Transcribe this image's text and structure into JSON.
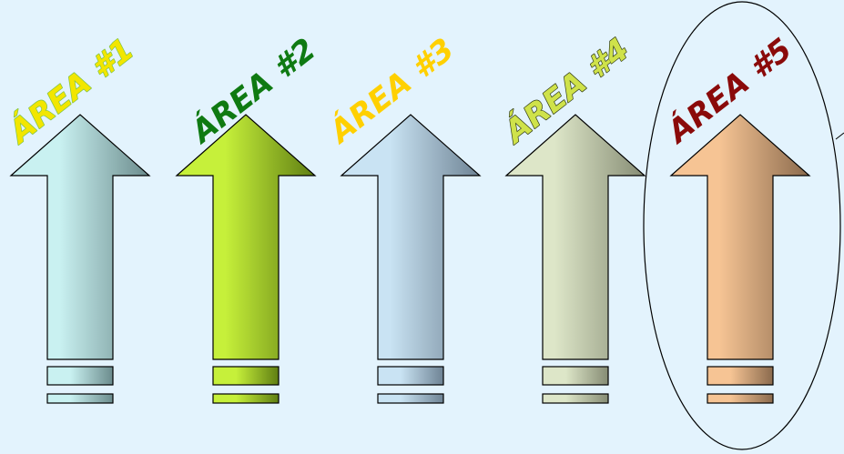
{
  "areas": [
    {
      "label": "ÁREA #1",
      "label_color": "#f2e600",
      "label_outline": "#7cc24a",
      "fill_light": "#c9f1f1",
      "fill_dark": "#6b8b8c"
    },
    {
      "label": "ÁREA #2",
      "label_color": "#0f7a12",
      "label_outline": "",
      "fill_light": "#c6f03a",
      "fill_dark": "#5f7e12"
    },
    {
      "label": "ÁREA #3",
      "label_color": "#ffd000",
      "label_outline": "",
      "fill_light": "#c9e3f3",
      "fill_dark": "#6e8394"
    },
    {
      "label": "ÁREA #4",
      "label_color": "#cfe24a",
      "label_outline": "#2f3a16",
      "fill_light": "#dde6c8",
      "fill_dark": "#868c74"
    },
    {
      "label": "ÁREA #5",
      "label_color": "#8a0a0a",
      "label_outline": "",
      "fill_light": "#f6c494",
      "fill_dark": "#8a6a4d"
    }
  ],
  "highlighted_area": 5
}
